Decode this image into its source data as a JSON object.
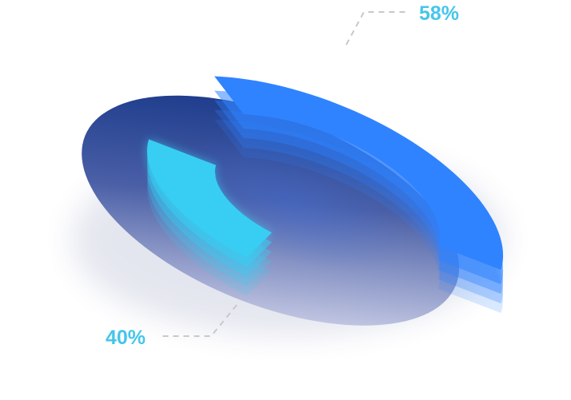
{
  "chart_data": {
    "type": "pie",
    "style": "3d-donut",
    "slices": [
      {
        "label": "58%",
        "value": 58,
        "color": "#2f83ff"
      },
      {
        "label": "40%",
        "value": 40,
        "color": "#38cef3"
      }
    ],
    "colors": {
      "blue_slice": "#2f83ff",
      "cyan_slice": "#38cef3",
      "base_dark": "#1f3f8f",
      "base_light": "#c3c7e3",
      "label_text": "#45c6ea",
      "leader_line": "#c8c8c8"
    }
  }
}
